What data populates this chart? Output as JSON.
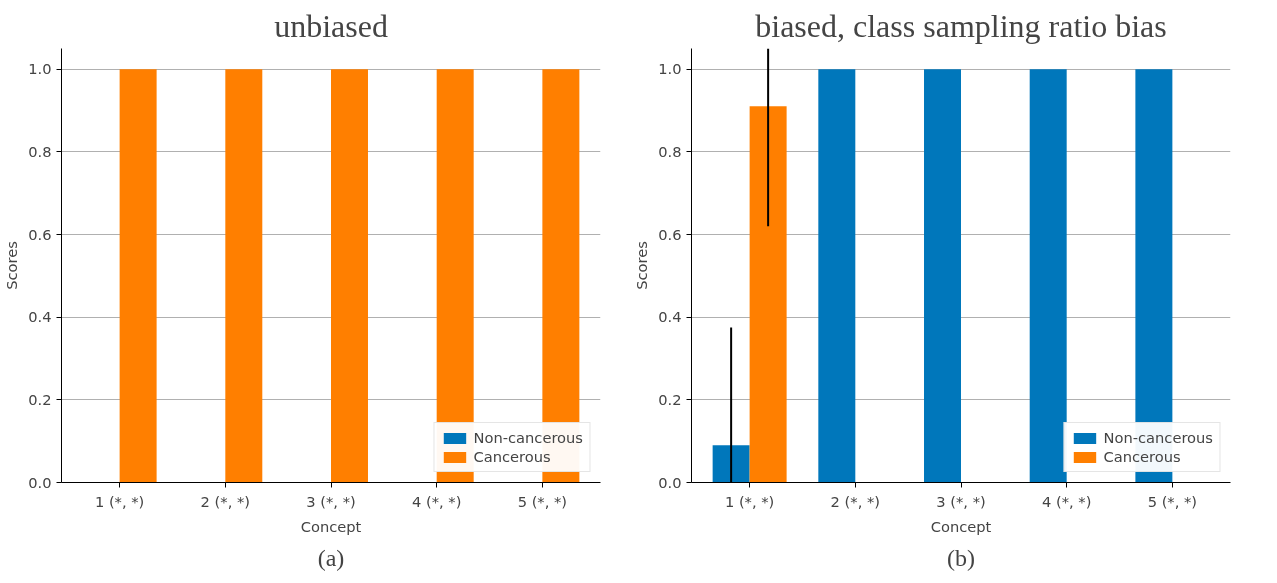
{
  "chart_data": [
    {
      "type": "bar",
      "title": "unbiased",
      "xlabel": "Concept",
      "ylabel": "Scores",
      "categories": [
        "1 (*, *)",
        "2 (*, *)",
        "3 (*, *)",
        "4 (*, *)",
        "5 (*, *)"
      ],
      "series": [
        {
          "name": "Non-cancerous",
          "color": "#0077bb",
          "values": [
            0,
            0,
            0,
            0,
            0
          ]
        },
        {
          "name": "Cancerous",
          "color": "#ff7f00",
          "values": [
            1,
            1,
            1,
            1,
            1
          ]
        }
      ],
      "ylim": [
        0,
        1.05
      ],
      "yticks": [
        {
          "value": 0,
          "label": "0.0"
        },
        {
          "value": 0.2,
          "label": "0.2"
        },
        {
          "value": 0.4,
          "label": "0.4"
        },
        {
          "value": 0.6,
          "label": "0.6"
        },
        {
          "value": 0.8,
          "label": "0.8"
        },
        {
          "value": 1,
          "label": "1.0"
        }
      ],
      "grid": "y",
      "legend": "bottom right",
      "annotations": [
        "(a)"
      ]
    },
    {
      "type": "bar",
      "title": "biased, class sampling ratio bias",
      "xlabel": "Concept",
      "ylabel": "Scores",
      "categories": [
        "1 (*, *)",
        "2 (*, *)",
        "3 (*, *)",
        "4 (*, *)",
        "5 (*, *)"
      ],
      "series": [
        {
          "name": "Non-cancerous",
          "color": "#0077bb",
          "values": [
            0.09,
            1,
            1,
            1,
            1
          ],
          "errors": [
            [
              0,
              0.375
            ],
            null,
            null,
            null,
            null
          ]
        },
        {
          "name": "Cancerous",
          "color": "#ff7f00",
          "values": [
            0.91,
            0,
            0,
            0,
            0
          ],
          "errors": [
            [
              0.62,
              1.05
            ],
            null,
            null,
            null,
            null
          ]
        }
      ],
      "ylim": [
        0,
        1.05
      ],
      "yticks": [
        {
          "value": 0,
          "label": "0.0"
        },
        {
          "value": 0.2,
          "label": "0.2"
        },
        {
          "value": 0.4,
          "label": "0.4"
        },
        {
          "value": 0.6,
          "label": "0.6"
        },
        {
          "value": 0.8,
          "label": "0.8"
        },
        {
          "value": 1,
          "label": "1.0"
        }
      ],
      "grid": "y",
      "legend": "bottom right",
      "annotations": [
        "(b)"
      ]
    }
  ]
}
